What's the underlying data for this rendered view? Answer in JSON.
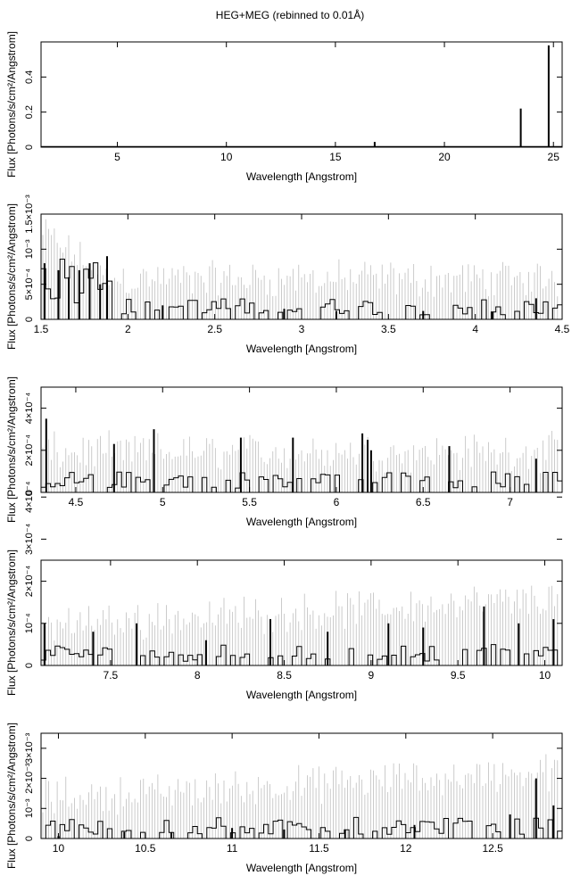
{
  "title": "HEG+MEG (rebinned to 0.01Å)",
  "chart_data": [
    {
      "type": "line",
      "xlabel": "Wavelength [Angstrom]",
      "ylabel": "Flux [Photons/s/cm²/Angstrom]",
      "xlim": [
        1.5,
        25.4
      ],
      "ylim": [
        0,
        0.6
      ],
      "x_ticks": [
        "5",
        "10",
        "15",
        "20",
        "25"
      ],
      "y_ticks": [
        "0",
        "0.2",
        "0.4"
      ],
      "grid": false,
      "series": [
        {
          "x": [
            1.5,
            16.8,
            23.5,
            24.78,
            25.4
          ],
          "y": [
            0,
            0.03,
            0.22,
            0.58,
            0
          ]
        }
      ]
    },
    {
      "type": "line",
      "xlabel": "Wavelength [Angstrom]",
      "ylabel": "Flux [Photons/s/cm²/Angstrom]",
      "xlim": [
        1.5,
        4.5
      ],
      "ylim": [
        0,
        0.0015
      ],
      "x_ticks": [
        "1.5",
        "2",
        "2.5",
        "3",
        "3.5",
        "4",
        "4.5"
      ],
      "y_ticks": [
        "0",
        "5×10⁻⁴",
        "10⁻³",
        "1.5×10⁻³"
      ],
      "grid": false,
      "series": [
        {
          "x": [
            1.52,
            1.6,
            1.66,
            1.72,
            1.78,
            1.84,
            1.88,
            2.2,
            2.9,
            3.2,
            3.7,
            4.1,
            4.35
          ],
          "y": [
            0.0008,
            0.0007,
            0.0006,
            0.0007,
            0.0008,
            0.0005,
            0.0009,
            0.0002,
            0.00015,
            0.00012,
            0.00012,
            0.00011,
            0.0003
          ]
        }
      ]
    },
    {
      "type": "line",
      "xlabel": "Wavelength [Angstrom]",
      "ylabel": "Flux [Photons/s/cm²/Angstrom]",
      "xlim": [
        4.3,
        7.3
      ],
      "ylim": [
        0,
        0.0005
      ],
      "x_ticks": [
        "4.5",
        "5",
        "5.5",
        "6",
        "6.5",
        "7"
      ],
      "y_ticks": [
        "0",
        "2×10⁻⁴",
        "4×10⁻⁴"
      ],
      "grid": false,
      "series": [
        {
          "x": [
            4.33,
            4.72,
            4.95,
            5.45,
            5.75,
            6.15,
            6.18,
            6.2,
            6.65,
            7.15
          ],
          "y": [
            0.00035,
            0.00023,
            0.0003,
            0.00026,
            0.00026,
            0.00028,
            0.00025,
            0.0002,
            0.00022,
            0.00016
          ]
        }
      ]
    },
    {
      "type": "line",
      "xlabel": "Wavelength [Angstrom]",
      "ylabel": "Flux [Photons/s/cm²/Angstrom]",
      "xlim": [
        7.1,
        10.1
      ],
      "ylim": [
        0,
        0.00025
      ],
      "x_ticks": [
        "7.5",
        "8",
        "8.5",
        "9",
        "9.5",
        "10"
      ],
      "y_ticks": [
        "0",
        "10⁻⁴",
        "2×10⁻⁴",
        "3×10⁻⁴",
        "4×10⁻⁴"
      ],
      "grid": false,
      "series": [
        {
          "x": [
            7.12,
            7.4,
            7.65,
            8.05,
            8.42,
            8.75,
            9.1,
            9.3,
            9.65,
            9.85,
            10.05
          ],
          "y": [
            0.0001,
            8e-05,
            0.0001,
            6e-05,
            0.00011,
            8e-05,
            0.0001,
            9e-05,
            0.00014,
            0.0001,
            0.00011
          ]
        }
      ]
    },
    {
      "type": "line",
      "xlabel": "Wavelength [Angstrom]",
      "ylabel": "Flux [Photons/s/cm²/Angstrom]",
      "xlim": [
        9.9,
        12.9
      ],
      "ylim": [
        0,
        0.0035
      ],
      "x_ticks": [
        "10",
        "10.5",
        "11",
        "11.5",
        "12",
        "12.5"
      ],
      "y_ticks": [
        "0",
        "10⁻³",
        "2×10⁻³",
        "3×10⁻³"
      ],
      "grid": false,
      "series": [
        {
          "x": [
            10.0,
            10.38,
            10.65,
            11.0,
            11.3,
            11.65,
            12.05,
            12.6,
            12.75,
            12.85
          ],
          "y": [
            8e-05,
            0.00022,
            0.00021,
            0.00035,
            0.0003,
            0.0003,
            0.00045,
            0.0008,
            0.002,
            0.0011
          ]
        }
      ]
    }
  ]
}
